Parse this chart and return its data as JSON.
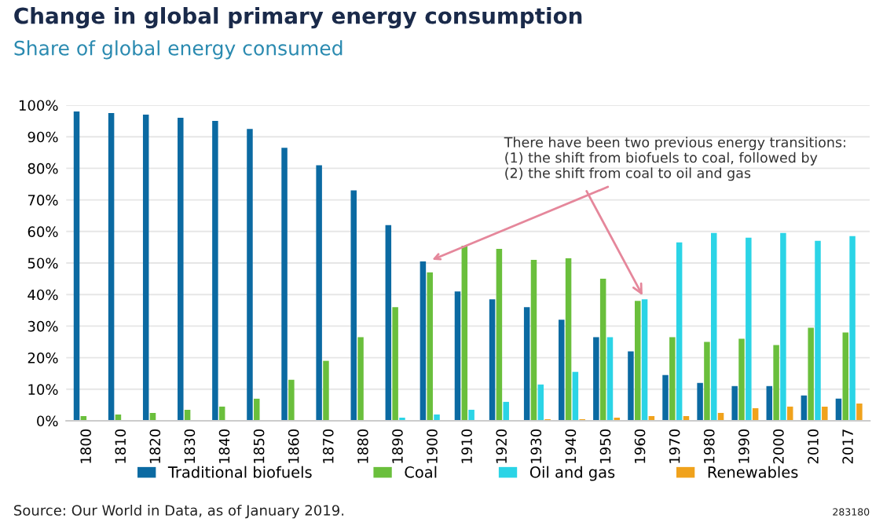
{
  "chart_data": {
    "type": "bar",
    "title": "Change in global primary energy consumption",
    "subtitle": "Share of global energy consumed",
    "categories": [
      "1800",
      "1810",
      "1820",
      "1830",
      "1840",
      "1850",
      "1860",
      "1870",
      "1880",
      "1890",
      "1900",
      "1910",
      "1920",
      "1930",
      "1940",
      "1950",
      "1960",
      "1970",
      "1980",
      "1990",
      "2000",
      "2010",
      "2017"
    ],
    "series": [
      {
        "name": "Traditional biofuels",
        "color": "#0b6aa2",
        "values": [
          98,
          97.5,
          97,
          96,
          95,
          92.5,
          86.5,
          81,
          73,
          62,
          50.5,
          41,
          38.5,
          36,
          32,
          26.5,
          22,
          14.5,
          12,
          11,
          11,
          8,
          7
        ]
      },
      {
        "name": "Coal",
        "color": "#6abf3c",
        "values": [
          1.5,
          2,
          2.5,
          3.5,
          4.5,
          7,
          13,
          19,
          26.5,
          36,
          47,
          55.5,
          54.5,
          51,
          51.5,
          45,
          38,
          26.5,
          25,
          26,
          24,
          29.5,
          28
        ]
      },
      {
        "name": "Oil and gas",
        "color": "#2bd4e6",
        "values": [
          0,
          0,
          0,
          0,
          0,
          0,
          0,
          0,
          0,
          1,
          2,
          3.5,
          6,
          11.5,
          15.5,
          26.5,
          38.5,
          56.5,
          59.5,
          58,
          59.5,
          57,
          58.5
        ]
      },
      {
        "name": "Renewables",
        "color": "#f0a21c",
        "values": [
          0,
          0,
          0,
          0,
          0,
          0,
          0,
          0,
          0,
          0,
          0,
          0,
          0,
          0.5,
          0.5,
          1,
          1.5,
          1.5,
          2.5,
          4,
          4.5,
          4.5,
          5.5
        ]
      }
    ],
    "ylim": [
      0,
      100
    ],
    "yticks": [
      {
        "value": 0,
        "label": "0%"
      },
      {
        "value": 10,
        "label": "10%"
      },
      {
        "value": 20,
        "label": "20%"
      },
      {
        "value": 30,
        "label": "30%"
      },
      {
        "value": 40,
        "label": "40%"
      },
      {
        "value": 50,
        "label": "50%"
      },
      {
        "value": 60,
        "label": "60%"
      },
      {
        "value": 70,
        "label": "70%"
      },
      {
        "value": 80,
        "label": "80%"
      },
      {
        "value": 90,
        "label": "90%"
      },
      {
        "value": 100,
        "label": "100%"
      }
    ],
    "grid": "y",
    "legend": "bottom",
    "annotations": [
      {
        "text": "There have been two previous energy transitions:\n(1) the shift from biofuels to coal, followed by\n(2) the shift from coal to oil and gas",
        "x": "1900",
        "y": 50.5
      },
      "Source: Our World in Data, as of January 2019.",
      "283180"
    ]
  }
}
